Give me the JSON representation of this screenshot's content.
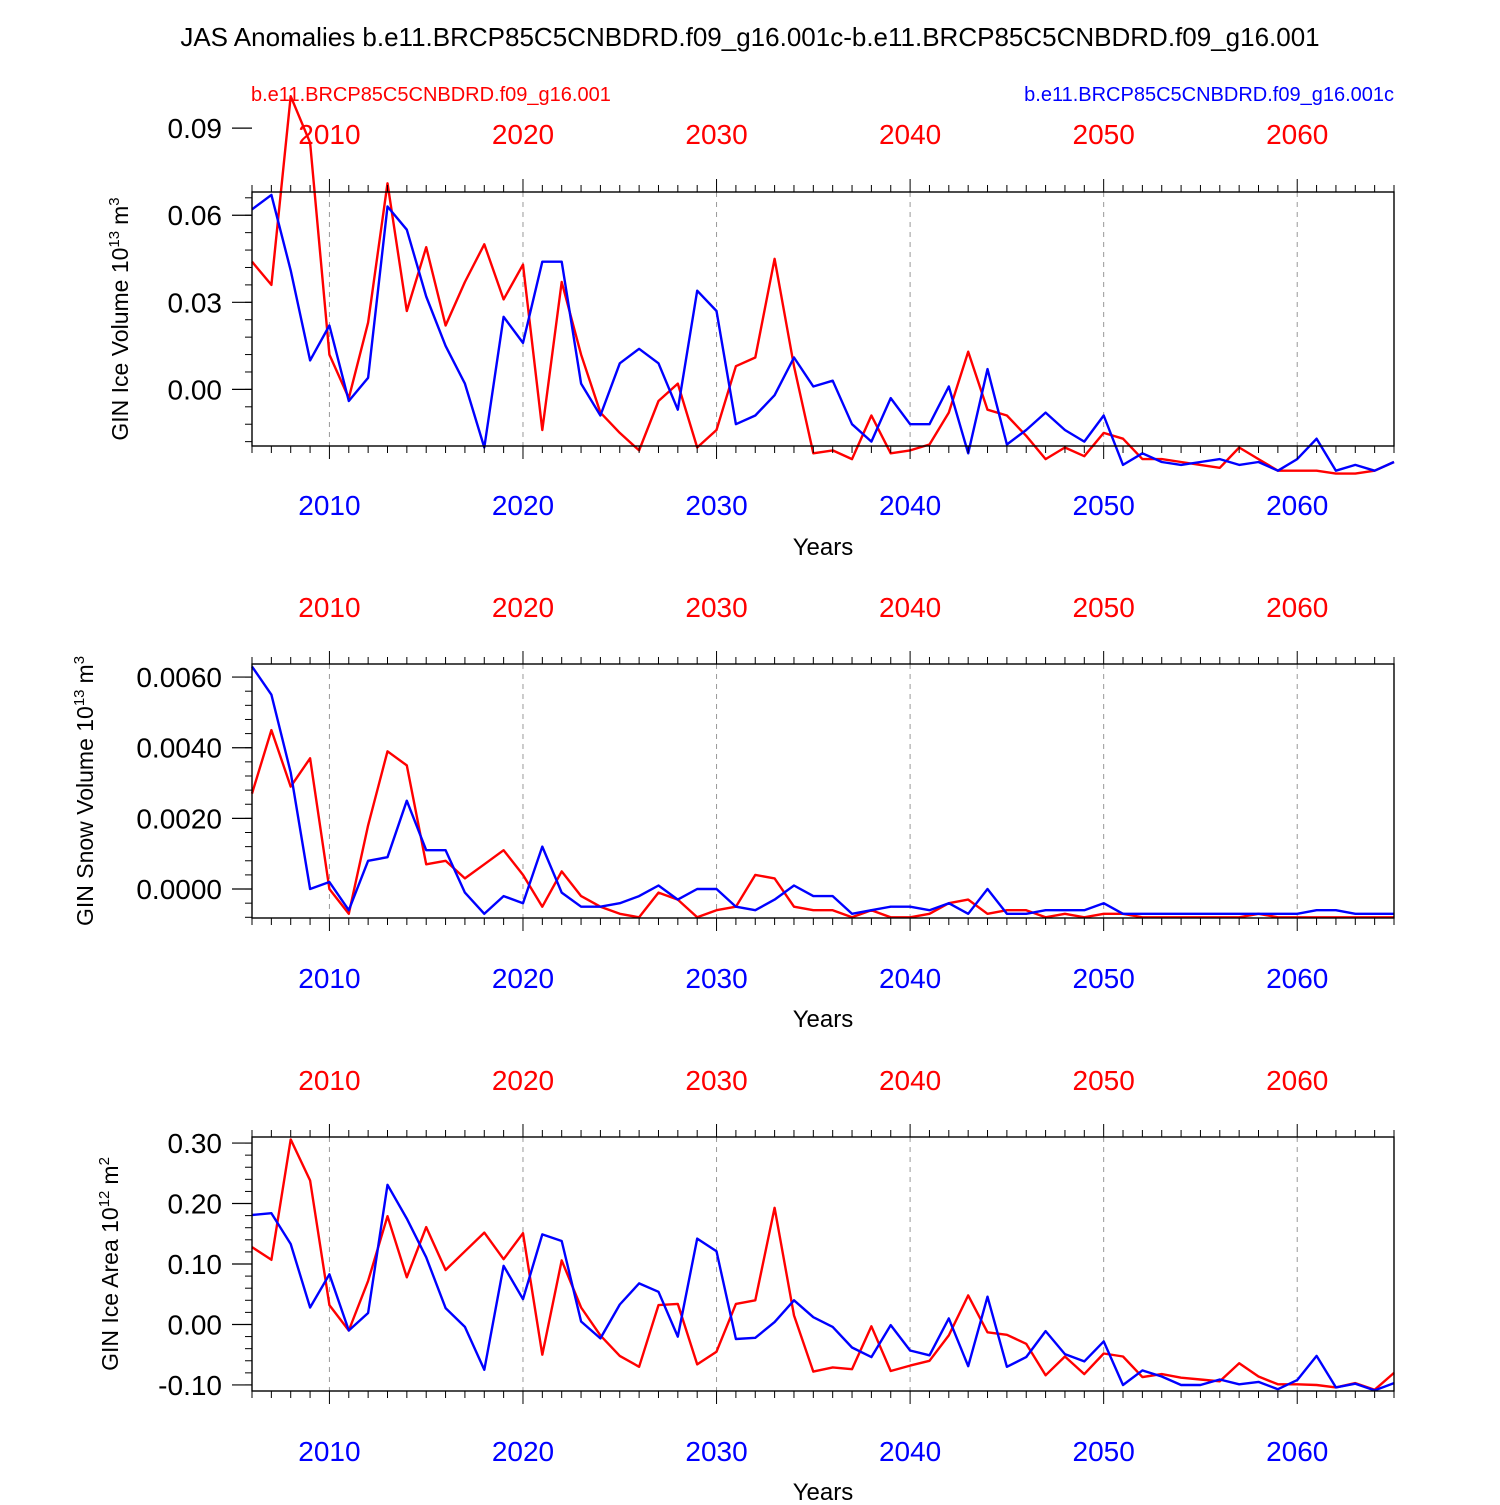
{
  "title": "JAS Anomalies b.e11.BRCP85C5CNBDRD.f09_g16.001c-b.e11.BRCP85C5CNBDRD.f09_g16.001",
  "legend": {
    "left": "b.e11.BRCP85C5CNBDRD.f09_g16.001",
    "right": "b.e11.BRCP85C5CNBDRD.f09_g16.001c"
  },
  "colors": {
    "red": "#ff0000",
    "blue": "#0000ff",
    "axis": "#000000",
    "grid": "#999999"
  },
  "chart_data": [
    {
      "type": "line",
      "ylabel": "GIN Ice Volume 10",
      "ylabel_exp": "13",
      "ylabel_unit": "m",
      "ylabel_unit_exp": "3",
      "xlabel": "Years",
      "xlim": [
        2006,
        2065
      ],
      "xticks": [
        2010,
        2020,
        2030,
        2040,
        2050,
        2060
      ],
      "xtick_labels": [
        "2010",
        "2020",
        "2030",
        "2040",
        "2050",
        "2060"
      ],
      "ylim": [
        -0.0195,
        0.068
      ],
      "yticks": [
        0.0,
        0.03,
        0.06,
        0.09
      ],
      "ytick_labels": [
        "0.00",
        "0.03",
        "0.06",
        "0.09"
      ],
      "yminor_step": 0.006,
      "x_start": 2006,
      "series": [
        {
          "name": "b.e11.BRCP85C5CNBDRD.f09_g16.001",
          "color": "red",
          "values": [
            0.044,
            0.036,
            0.101,
            0.085,
            0.012,
            -0.003,
            0.023,
            0.071,
            0.027,
            0.049,
            0.022,
            0.037,
            0.05,
            0.031,
            0.043,
            -0.014,
            0.037,
            0.012,
            -0.008,
            -0.015,
            -0.021,
            -0.004,
            0.002,
            -0.02,
            -0.014,
            0.008,
            0.011,
            0.045,
            0.008,
            -0.022,
            -0.021,
            -0.024,
            -0.009,
            -0.022,
            -0.021,
            -0.019,
            -0.008,
            0.013,
            -0.007,
            -0.009,
            -0.016,
            -0.024,
            -0.02,
            -0.023,
            -0.015,
            -0.017,
            -0.024,
            -0.024,
            -0.025,
            -0.026,
            -0.027,
            -0.02,
            -0.024,
            -0.028,
            -0.028,
            -0.028,
            -0.029,
            -0.029,
            -0.028,
            -0.025
          ]
        },
        {
          "name": "b.e11.BRCP85C5CNBDRD.f09_g16.001c",
          "color": "blue",
          "values": [
            0.062,
            0.067,
            0.041,
            0.01,
            0.022,
            -0.004,
            0.004,
            0.063,
            0.055,
            0.032,
            0.015,
            0.002,
            -0.02,
            0.025,
            0.016,
            0.044,
            0.044,
            0.002,
            -0.009,
            0.009,
            0.014,
            0.009,
            -0.007,
            0.034,
            0.027,
            -0.012,
            -0.009,
            -0.002,
            0.011,
            0.001,
            0.003,
            -0.012,
            -0.018,
            -0.003,
            -0.012,
            -0.012,
            0.001,
            -0.022,
            0.007,
            -0.019,
            -0.014,
            -0.008,
            -0.014,
            -0.018,
            -0.009,
            -0.026,
            -0.022,
            -0.025,
            -0.026,
            -0.025,
            -0.024,
            -0.026,
            -0.025,
            -0.028,
            -0.024,
            -0.017,
            -0.028,
            -0.026,
            -0.028,
            -0.025
          ]
        }
      ]
    },
    {
      "type": "line",
      "ylabel": "GIN Snow Volume 10",
      "ylabel_exp": "13",
      "ylabel_unit": "m",
      "ylabel_unit_exp": "3",
      "xlabel": "Years",
      "xlim": [
        2006,
        2065
      ],
      "xticks": [
        2010,
        2020,
        2030,
        2040,
        2050,
        2060
      ],
      "xtick_labels": [
        "2010",
        "2020",
        "2030",
        "2040",
        "2050",
        "2060"
      ],
      "ylim": [
        -0.00082,
        0.00637
      ],
      "yticks": [
        0.0,
        0.002,
        0.004,
        0.006
      ],
      "ytick_labels": [
        "0.0000",
        "0.0020",
        "0.0040",
        "0.0060"
      ],
      "yminor_step": 0.0004,
      "x_start": 2006,
      "series": [
        {
          "name": "b.e11.BRCP85C5CNBDRD.f09_g16.001",
          "color": "red",
          "values": [
            0.0027,
            0.0045,
            0.0029,
            0.0037,
            0.0,
            -0.0007,
            0.0018,
            0.0039,
            0.0035,
            0.0007,
            0.0008,
            0.0003,
            0.0007,
            0.0011,
            0.0004,
            -0.0005,
            0.0005,
            -0.0002,
            -0.0005,
            -0.0007,
            -0.0008,
            -0.0001,
            -0.0003,
            -0.0008,
            -0.0006,
            -0.0005,
            0.0004,
            0.0003,
            -0.0005,
            -0.0006,
            -0.0006,
            -0.0008,
            -0.0006,
            -0.0008,
            -0.0008,
            -0.0007,
            -0.0004,
            -0.0003,
            -0.0007,
            -0.0006,
            -0.0006,
            -0.0008,
            -0.0007,
            -0.0008,
            -0.0007,
            -0.0007,
            -0.0008,
            -0.0008,
            -0.0008,
            -0.0008,
            -0.0008,
            -0.0008,
            -0.0007,
            -0.0008,
            -0.0008,
            -0.0008,
            -0.0008,
            -0.0008,
            -0.0008,
            -0.0008
          ]
        },
        {
          "name": "b.e11.BRCP85C5CNBDRD.f09_g16.001c",
          "color": "blue",
          "values": [
            0.0063,
            0.0055,
            0.0033,
            0.0,
            0.0002,
            -0.0006,
            0.0008,
            0.0009,
            0.0025,
            0.0011,
            0.0011,
            -0.0001,
            -0.0007,
            -0.0002,
            -0.0004,
            0.0012,
            -0.0001,
            -0.0005,
            -0.0005,
            -0.0004,
            -0.0002,
            0.0001,
            -0.0003,
            0.0,
            0.0,
            -0.0005,
            -0.0006,
            -0.0003,
            0.0001,
            -0.0002,
            -0.0002,
            -0.0007,
            -0.0006,
            -0.0005,
            -0.0005,
            -0.0006,
            -0.0004,
            -0.0007,
            0.0,
            -0.0007,
            -0.0007,
            -0.0006,
            -0.0006,
            -0.0006,
            -0.0004,
            -0.0007,
            -0.0007,
            -0.0007,
            -0.0007,
            -0.0007,
            -0.0007,
            -0.0007,
            -0.0007,
            -0.0007,
            -0.0007,
            -0.0006,
            -0.0006,
            -0.0007,
            -0.0007,
            -0.0007
          ]
        }
      ]
    },
    {
      "type": "line",
      "ylabel": "GIN Ice Area 10",
      "ylabel_exp": "12",
      "ylabel_unit": "m",
      "ylabel_unit_exp": "2",
      "xlabel": "Years",
      "xlim": [
        2006,
        2065
      ],
      "xticks": [
        2010,
        2020,
        2030,
        2040,
        2050,
        2060
      ],
      "xtick_labels": [
        "2010",
        "2020",
        "2030",
        "2040",
        "2050",
        "2060"
      ],
      "ylim": [
        -0.11,
        0.31
      ],
      "yticks": [
        -0.1,
        0.0,
        0.1,
        0.2,
        0.3
      ],
      "ytick_labels": [
        "-0.10",
        "0.00",
        "0.10",
        "0.20",
        "0.30"
      ],
      "yminor_step": 0.02,
      "x_start": 2006,
      "series": [
        {
          "name": "b.e11.BRCP85C5CNBDRD.f09_g16.001",
          "color": "red",
          "values": [
            0.128,
            0.107,
            0.306,
            0.238,
            0.032,
            -0.01,
            0.072,
            0.179,
            0.078,
            0.161,
            0.09,
            0.121,
            0.152,
            0.108,
            0.151,
            -0.05,
            0.106,
            0.028,
            -0.018,
            -0.052,
            -0.07,
            0.032,
            0.034,
            -0.066,
            -0.045,
            0.034,
            0.04,
            0.193,
            0.015,
            -0.078,
            -0.071,
            -0.074,
            -0.003,
            -0.077,
            -0.068,
            -0.06,
            -0.018,
            0.048,
            -0.013,
            -0.017,
            -0.032,
            -0.084,
            -0.053,
            -0.082,
            -0.048,
            -0.053,
            -0.087,
            -0.082,
            -0.088,
            -0.091,
            -0.094,
            -0.064,
            -0.086,
            -0.099,
            -0.099,
            -0.1,
            -0.104,
            -0.097,
            -0.108,
            -0.08
          ]
        },
        {
          "name": "b.e11.BRCP85C5CNBDRD.f09_g16.001c",
          "color": "blue",
          "values": [
            0.181,
            0.184,
            0.133,
            0.028,
            0.083,
            -0.01,
            0.019,
            0.231,
            0.175,
            0.111,
            0.027,
            -0.004,
            -0.075,
            0.097,
            0.042,
            0.149,
            0.138,
            0.005,
            -0.023,
            0.033,
            0.068,
            0.054,
            -0.02,
            0.142,
            0.121,
            -0.024,
            -0.022,
            0.004,
            0.04,
            0.012,
            -0.004,
            -0.038,
            -0.054,
            -0.001,
            -0.043,
            -0.051,
            0.01,
            -0.069,
            0.046,
            -0.07,
            -0.054,
            -0.011,
            -0.049,
            -0.061,
            -0.028,
            -0.1,
            -0.076,
            -0.086,
            -0.1,
            -0.1,
            -0.091,
            -0.099,
            -0.095,
            -0.107,
            -0.092,
            -0.052,
            -0.104,
            -0.098,
            -0.109,
            -0.097
          ]
        }
      ]
    }
  ]
}
